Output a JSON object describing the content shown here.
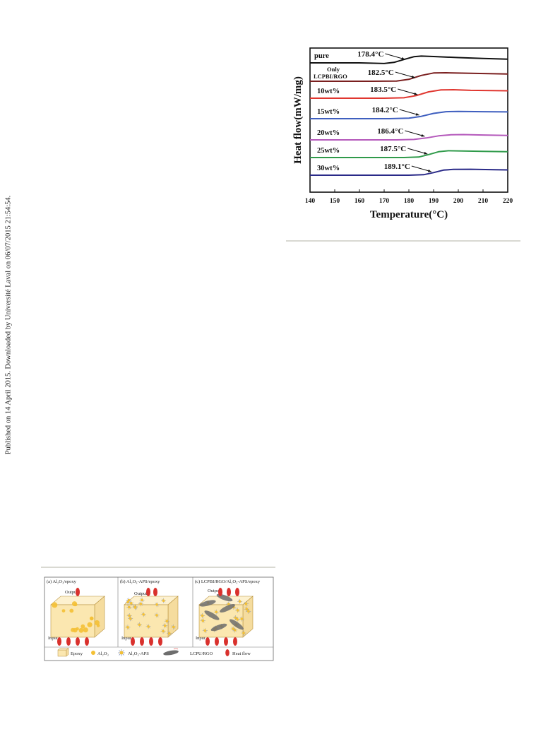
{
  "margin_note": "Published on 14 April 2015. Downloaded by Université Laval on 06/07/2015 21:54:54.",
  "chart_data": {
    "type": "line",
    "xlabel": "Temperature(°C)",
    "ylabel": "Heat flow(mW/mg)",
    "xlim": [
      140,
      220
    ],
    "x_ticks": [
      "140",
      "150",
      "160",
      "170",
      "180",
      "190",
      "200",
      "210",
      "220"
    ],
    "grid": false,
    "series": [
      {
        "name": "pure",
        "tg_label": "178.4°C",
        "tg": 178.4,
        "color": "#111111",
        "x": [
          140,
          160,
          170,
          174,
          178,
          182,
          185,
          190,
          200,
          210,
          220
        ],
        "y": [
          0,
          0,
          -0.06,
          0.05,
          0.32,
          0.58,
          0.64,
          0.6,
          0.5,
          0.42,
          0.35
        ]
      },
      {
        "name": "Only LCPBI/RGO",
        "tg_label": "182.5°C",
        "tg": 182.5,
        "color": "#7a1f1f",
        "x": [
          140,
          165,
          175,
          180,
          185,
          190,
          195,
          205,
          220
        ],
        "y": [
          0,
          0,
          0.02,
          0.18,
          0.55,
          0.78,
          0.8,
          0.75,
          0.68
        ]
      },
      {
        "name": "10wt%",
        "tg_label": "183.5°C",
        "tg": 183.5,
        "color": "#e0362f",
        "x": [
          140,
          170,
          178,
          183,
          188,
          193,
          198,
          205,
          220
        ],
        "y": [
          0,
          0,
          0.04,
          0.25,
          0.6,
          0.78,
          0.8,
          0.74,
          0.7
        ]
      },
      {
        "name": "15wt%",
        "tg_label": "184.2°C",
        "tg": 184.2,
        "color": "#3f5fbf",
        "x": [
          140,
          172,
          180,
          185,
          190,
          195,
          200,
          210,
          220
        ],
        "y": [
          0,
          0,
          0.05,
          0.22,
          0.5,
          0.66,
          0.68,
          0.66,
          0.64
        ]
      },
      {
        "name": "20wt%",
        "tg_label": "186.4°C",
        "tg": 186.4,
        "color": "#b458bb",
        "x": [
          140,
          175,
          182,
          187,
          192,
          197,
          202,
          210,
          220
        ],
        "y": [
          0,
          0,
          0.04,
          0.18,
          0.38,
          0.48,
          0.5,
          0.46,
          0.42
        ]
      },
      {
        "name": "25wt%",
        "tg_label": "187.5°C",
        "tg": 187.5,
        "color": "#2f9a4a",
        "x": [
          140,
          178,
          184,
          188,
          192,
          196,
          200,
          210,
          220
        ],
        "y": [
          0,
          0,
          0.05,
          0.28,
          0.55,
          0.64,
          0.63,
          0.58,
          0.55
        ]
      },
      {
        "name": "30wt%",
        "tg_label": "189.1°C",
        "tg": 189.1,
        "color": "#2a2a88",
        "x": [
          140,
          180,
          186,
          190,
          194,
          198,
          205,
          215,
          220
        ],
        "y": [
          0,
          0,
          0.05,
          0.25,
          0.48,
          0.55,
          0.56,
          0.52,
          0.5
        ]
      }
    ]
  },
  "schematic": {
    "panels": [
      {
        "label": "(a) Al₂O₃/epoxy"
      },
      {
        "label": "(b) Al₂O₃-APS/epoxy"
      },
      {
        "label": "(c) LCPBI/RGO/Al₂O₃-APS/epoxy"
      }
    ],
    "output_label": "Output",
    "input_label": "Input",
    "legend": [
      {
        "label": "Epoxy"
      },
      {
        "label": "Al₂O₃"
      },
      {
        "label": "Al₂O₃-APS"
      },
      {
        "label": "LCPU/RGO"
      },
      {
        "label": "Heat flow"
      }
    ],
    "colors": {
      "epoxy": "#fbe7b0",
      "al2o3": "#f4c035",
      "heat": "#d9312d",
      "rgo": "#6d6d6d"
    }
  }
}
